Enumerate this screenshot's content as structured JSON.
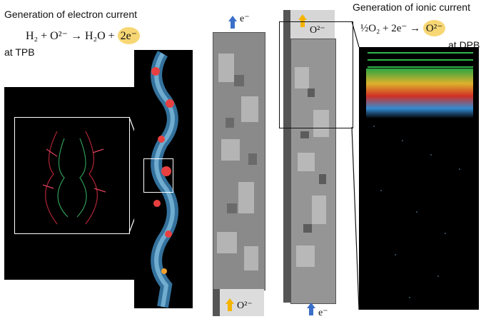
{
  "left": {
    "title": "Generation of electron current",
    "reaction_left": "H₂ + O²⁻ → H₂O + ",
    "reaction_product": "2e⁻",
    "location": "at TPB"
  },
  "middle": {
    "top_species": "e⁻",
    "bottom_species": "O²⁻"
  },
  "right": {
    "title": "Generation of ionic current",
    "reaction_left": "½O₂ + 2e⁻ → ",
    "reaction_product": "O²⁻",
    "location": "at DPB",
    "top_species": "O²⁻",
    "bottom_species": "e⁻"
  },
  "colors": {
    "highlight": "#f7d774",
    "arrow_yellow": "#f5b400",
    "arrow_blue": "#3a6fc9"
  }
}
